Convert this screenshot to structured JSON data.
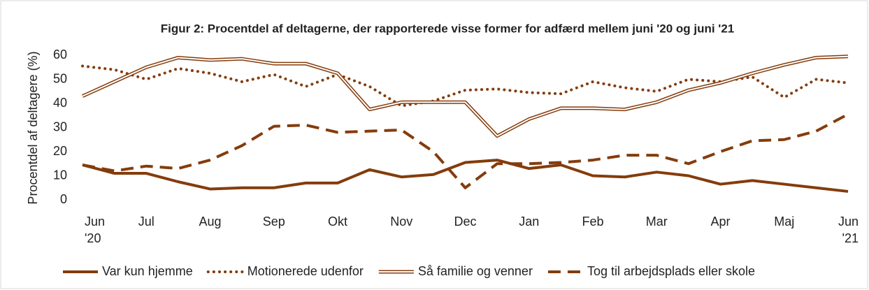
{
  "chart_data": {
    "type": "line",
    "title": "Figur 2: Procentdel af deltagerne, der rapporterede visse former for adfærd mellem juni '20 og juni '21",
    "y_label": "Procentdel af deltagere (%)",
    "categories": [
      "Jun '20",
      null,
      "Jul",
      null,
      "Aug",
      null,
      "Sep",
      null,
      "Okt",
      null,
      "Nov",
      null,
      "Dec",
      null,
      "Jan",
      null,
      "Feb",
      null,
      "Mar",
      null,
      "Apr",
      null,
      "Maj",
      null,
      "Jun '21"
    ],
    "ylim": [
      0,
      60
    ],
    "yticks": [
      0,
      10,
      20,
      30,
      40,
      50,
      60
    ],
    "grid": false,
    "legend": "bottom",
    "series": [
      {
        "name": "Var kun hjemme",
        "color": "#843c0c",
        "style": "solid",
        "values": [
          14.5,
          11,
          11,
          7.5,
          4.5,
          5,
          5,
          7,
          7,
          12.5,
          9.5,
          10.5,
          15.5,
          16.5,
          13,
          14.5,
          10,
          9.5,
          11.5,
          10,
          6.5,
          8,
          6.5,
          5,
          3.5
        ]
      },
      {
        "name": "Motionerede udenfor",
        "color": "#843c0c",
        "style": "dotted",
        "values": [
          55.5,
          54,
          50,
          54.5,
          52.5,
          49,
          52,
          47,
          52,
          47,
          39,
          41,
          45.5,
          46,
          44.5,
          44,
          49,
          46.5,
          45,
          50,
          49,
          51,
          42.5,
          50,
          48.5
        ]
      },
      {
        "name": "Så familie og venner",
        "color": "#843c0c",
        "style": "double",
        "values": [
          43,
          49,
          55,
          59,
          58,
          58.5,
          56.5,
          56.5,
          52.5,
          37.5,
          40.5,
          40.5,
          40.5,
          26.5,
          33.5,
          38,
          38,
          37.5,
          40.5,
          45.5,
          48.5,
          52.5,
          56,
          59,
          59.5
        ]
      },
      {
        "name": "Tog til arbejdsplads eller skole",
        "color": "#843c0c",
        "style": "dashed",
        "values": [
          14.5,
          12,
          14,
          13,
          16.5,
          22.5,
          30.5,
          31,
          28,
          28.5,
          29,
          20,
          5,
          15,
          15,
          15.5,
          16.5,
          18.5,
          18.5,
          15,
          20,
          24.5,
          25,
          28.5,
          35.5
        ]
      }
    ]
  }
}
